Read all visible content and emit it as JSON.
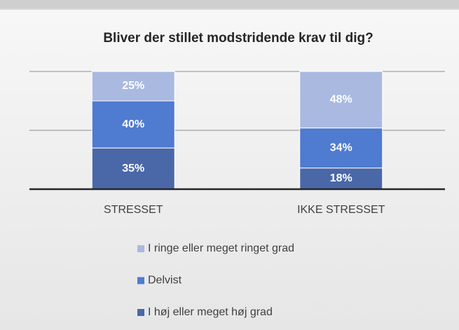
{
  "chart_data": {
    "type": "stacked_bar",
    "title": "Bliver der stillet modstridende krav til dig?",
    "categories": [
      "STRESSET",
      "IKKE STRESSET"
    ],
    "series": [
      {
        "name": "I høj eller meget høj grad",
        "color": "#4a67a8",
        "values": [
          35,
          18
        ],
        "value_labels": [
          "35%",
          "18%"
        ]
      },
      {
        "name": "Delvist",
        "color": "#4f7bd0",
        "values": [
          40,
          34
        ],
        "value_labels": [
          "40%",
          "34%"
        ]
      },
      {
        "name": "I ringe eller meget ringet grad",
        "color": "#a9b9e0",
        "values": [
          25,
          48
        ],
        "value_labels": [
          "25%",
          "48%"
        ]
      }
    ],
    "ylim": [
      0,
      100
    ],
    "yticks": [
      0,
      50,
      100
    ],
    "grid": true
  }
}
